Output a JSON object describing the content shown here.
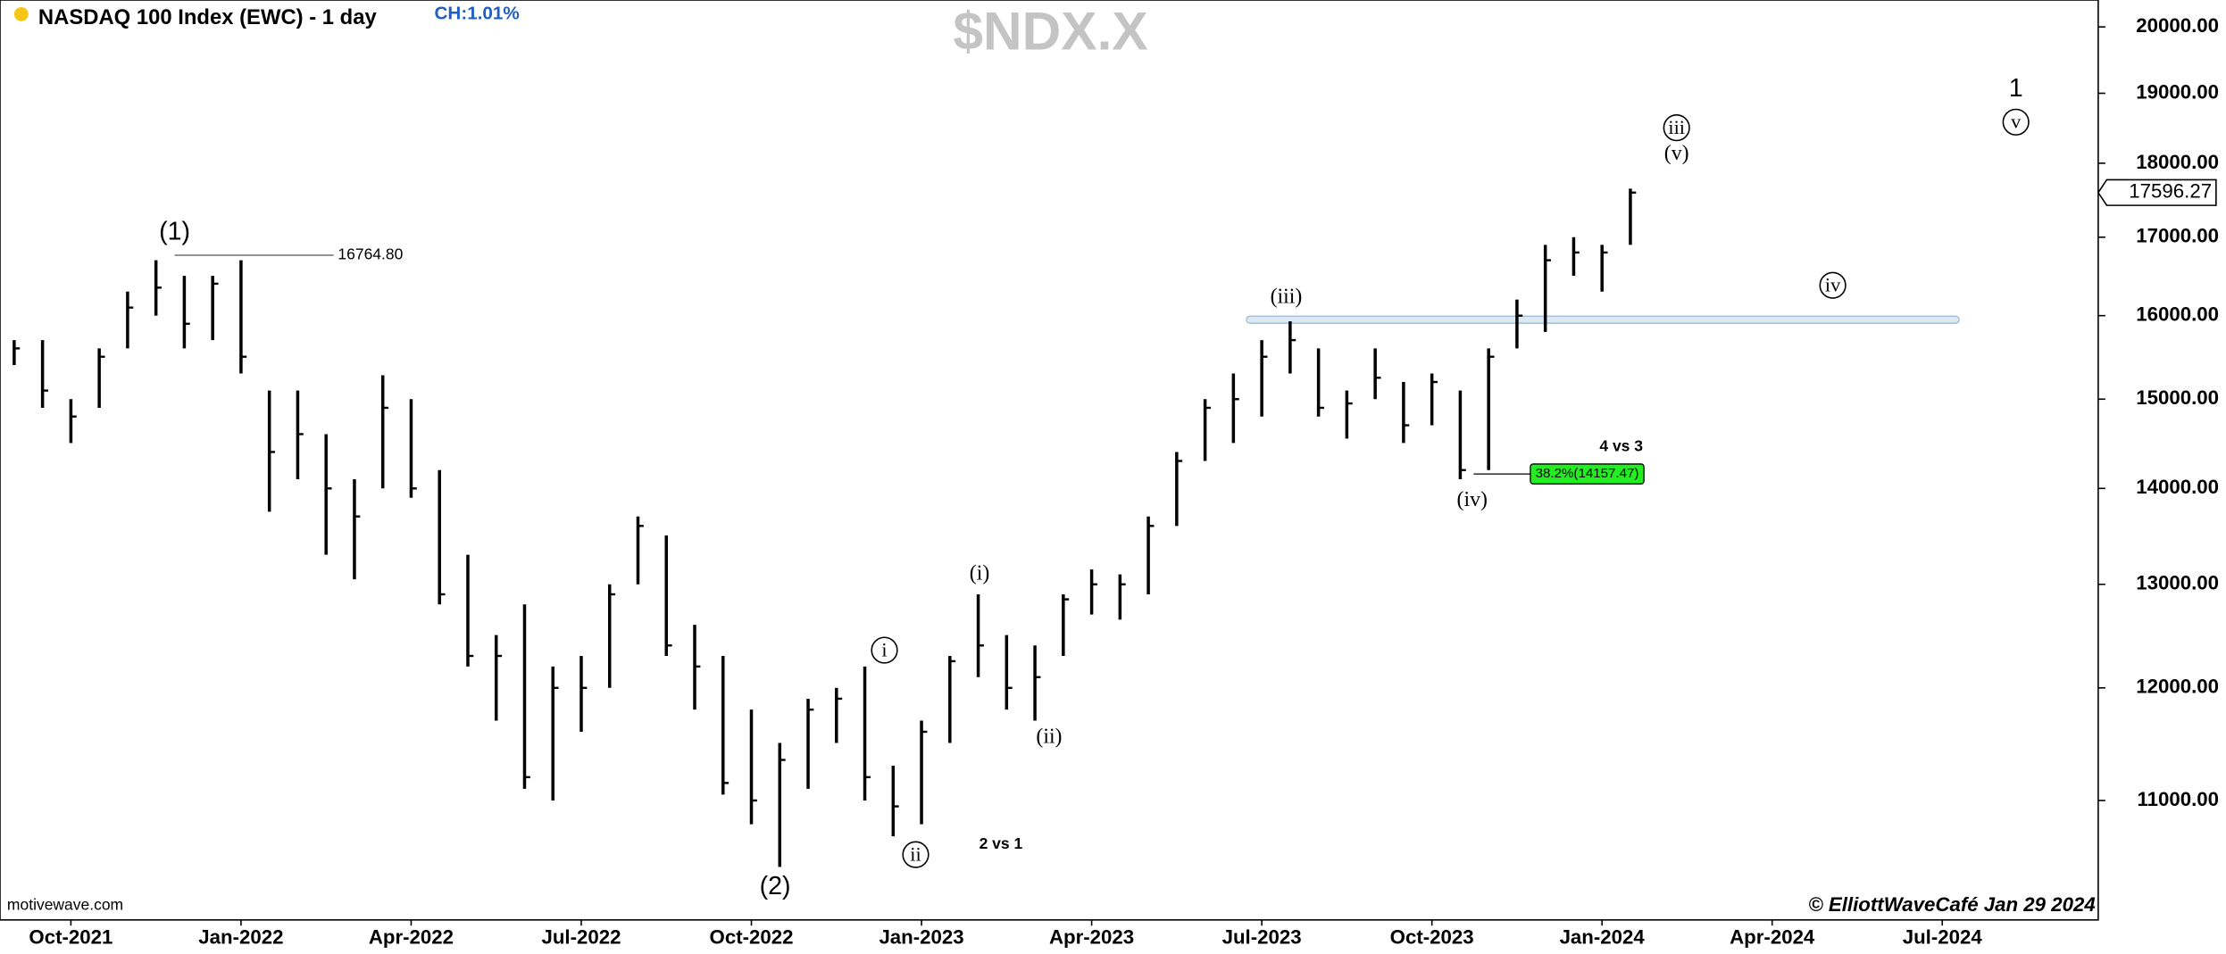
{
  "chart_data": {
    "type": "ohlc",
    "title": "NASDAQ 100 Index (EWC) - 1 day",
    "change": "CH:1.01%",
    "symbol": "$NDX.X",
    "source": "motivewave.com",
    "credit": "© ElliottWaveCafé Jan 29 2024",
    "log_scale": true,
    "color": "#000000",
    "categories": [
      null,
      null,
      "Oct-2021",
      null,
      null,
      null,
      null,
      null,
      "Jan-2022",
      null,
      null,
      null,
      null,
      null,
      "Apr-2022",
      null,
      null,
      null,
      null,
      null,
      "Jul-2022",
      null,
      null,
      null,
      null,
      null,
      "Oct-2022",
      null,
      null,
      null,
      null,
      null,
      "Jan-2023",
      null,
      null,
      null,
      null,
      null,
      "Apr-2023",
      null,
      null,
      null,
      null,
      null,
      "Jul-2023",
      null,
      null,
      null,
      null,
      null,
      "Oct-2023",
      null,
      null,
      null,
      null,
      null,
      "Jan-2024",
      null,
      null,
      null,
      null,
      null,
      "Apr-2024",
      null,
      null,
      null,
      null,
      null,
      "Jul-2024",
      null,
      null,
      null,
      null,
      null
    ],
    "high": [
      15700,
      15700,
      15000,
      15600,
      16300,
      16700,
      16500,
      16500,
      16700,
      15100,
      15100,
      14600,
      14100,
      15280,
      15000,
      14200,
      13300,
      12500,
      12800,
      12200,
      12300,
      13000,
      13700,
      13500,
      12600,
      12300,
      11800,
      11500,
      11900,
      12000,
      12200,
      11300,
      11700,
      12300,
      12900,
      12500,
      12400,
      12900,
      13150,
      13100,
      13700,
      14400,
      15000,
      15300,
      15700,
      15930,
      15600,
      15100,
      15600,
      15200,
      15300,
      15100,
      15600,
      16200,
      16900,
      17000,
      16900,
      17650,
      null,
      null,
      null,
      null,
      null,
      null,
      null,
      null,
      null,
      null,
      null,
      null,
      null,
      null,
      null,
      null
    ],
    "low": [
      15400,
      14900,
      14500,
      14900,
      15600,
      16000,
      15600,
      15700,
      15300,
      13750,
      14100,
      13300,
      13050,
      14000,
      13900,
      12800,
      12200,
      11700,
      11100,
      11000,
      11600,
      12000,
      13000,
      12300,
      11800,
      11050,
      10800,
      10450,
      11100,
      11500,
      11000,
      10700,
      10800,
      11500,
      12100,
      11800,
      11700,
      12300,
      12700,
      12650,
      12900,
      13600,
      14300,
      14500,
      14800,
      15300,
      14800,
      14550,
      15000,
      14500,
      14700,
      14100,
      14200,
      15600,
      15800,
      16500,
      16300,
      16900,
      null,
      null,
      null,
      null,
      null,
      null,
      null,
      null,
      null,
      null,
      null,
      null,
      null,
      null,
      null,
      null
    ],
    "close": [
      15600,
      15100,
      14800,
      15500,
      16100,
      16350,
      15900,
      16400,
      15500,
      14400,
      14600,
      14000,
      13700,
      14900,
      14000,
      12900,
      12300,
      12300,
      11200,
      12000,
      12000,
      12900,
      13600,
      12400,
      12200,
      11150,
      11000,
      11350,
      11800,
      11900,
      11200,
      10950,
      11600,
      12250,
      12400,
      12000,
      12100,
      12850,
      13000,
      13000,
      13600,
      14300,
      14900,
      15000,
      15500,
      15700,
      14900,
      14950,
      15250,
      14700,
      15200,
      14200,
      15500,
      16000,
      16700,
      16800,
      16800,
      17596.27,
      null,
      null,
      null,
      null,
      null,
      null,
      null,
      null,
      null,
      null,
      null,
      null,
      null,
      null,
      null,
      null
    ],
    "ylim": [
      10030,
      20420
    ],
    "yticks": [
      {
        "value": 11000,
        "label": "11000.00"
      },
      {
        "value": 12000,
        "label": "12000.00"
      },
      {
        "value": 13000,
        "label": "13000.00"
      },
      {
        "value": 14000,
        "label": "14000.00"
      },
      {
        "value": 15000,
        "label": "15000.00"
      },
      {
        "value": 16000,
        "label": "16000.00"
      },
      {
        "value": 17000,
        "label": "17000.00"
      },
      {
        "value": 18000,
        "label": "18000.00"
      },
      {
        "value": 19000,
        "label": "19000.00"
      },
      {
        "value": 20000,
        "label": "20000.00"
      }
    ],
    "last_price": {
      "value": 17596.27,
      "label": "17596.27"
    },
    "prior_high": {
      "value": 16764.8,
      "label": "16764.80"
    },
    "retracement": {
      "value": 14157.47,
      "label": "38.2%(14157.47)"
    },
    "resistance_zone": 15950,
    "annotations": [
      "(1)",
      "(2)",
      "i",
      "ii",
      "(i)",
      "(ii)",
      "(iii)",
      "(iv)",
      "iii",
      "(v)",
      "1",
      "v",
      "iv",
      "2 vs 1",
      "4 vs 3"
    ]
  }
}
